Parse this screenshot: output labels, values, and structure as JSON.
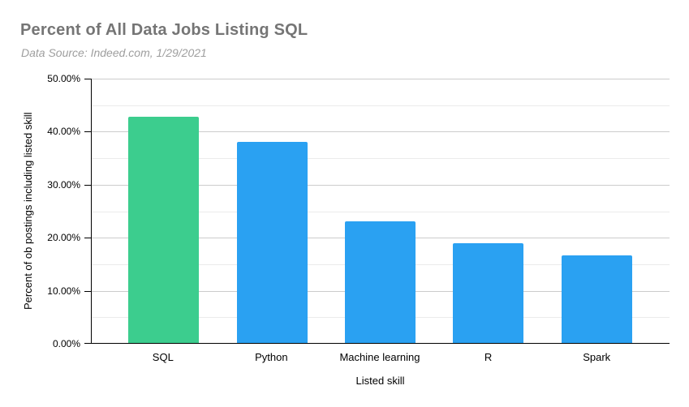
{
  "chart_data": {
    "type": "bar",
    "title": "Percent of All Data Jobs Listing SQL",
    "subtitle": "Data Source: Indeed.com, 1/29/2021",
    "categories": [
      "SQL",
      "Python",
      "Machine learning",
      "R",
      "Spark"
    ],
    "values": [
      42.7,
      38.0,
      22.9,
      18.8,
      16.5
    ],
    "bar_colors": [
      "#3ccd8e",
      "#2aa1f2",
      "#2aa1f2",
      "#2aa1f2",
      "#2aa1f2"
    ],
    "xlabel": "Listed skill",
    "ylabel": "Percent of ob postings including listed skill",
    "ylim": [
      0,
      50
    ],
    "y_major_step": 10,
    "y_minor_step": 5,
    "y_tick_labels": [
      "0.00%",
      "10.00%",
      "20.00%",
      "30.00%",
      "40.00%",
      "50.00%"
    ],
    "grid": true,
    "legend": "none",
    "colors": {
      "highlight_bar": "#3ccd8e",
      "default_bar": "#2aa1f2",
      "title_text": "#757575",
      "subtitle_text": "#9e9e9e",
      "grid_major": "#cccccc",
      "grid_minor": "#ebebeb",
      "axis_line": "#000000",
      "background": "#ffffff"
    }
  }
}
